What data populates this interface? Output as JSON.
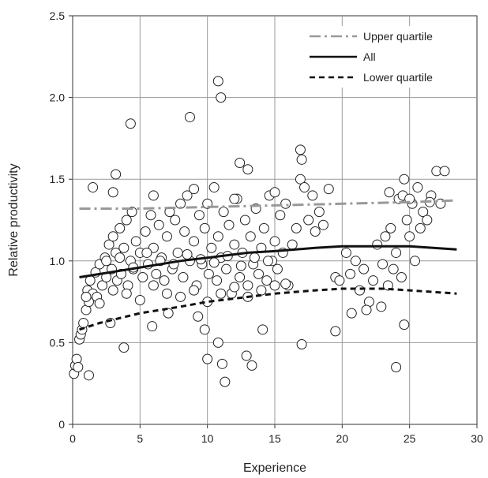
{
  "chart_data": {
    "type": "scatter",
    "xlabel": "Experience",
    "ylabel": "Relative productivity",
    "xlim": [
      0,
      30
    ],
    "ylim": [
      0,
      2.5
    ],
    "xticks": [
      0,
      5,
      10,
      15,
      20,
      25,
      30
    ],
    "yticks": [
      0,
      0.5,
      1.0,
      1.5,
      2.0,
      2.5
    ],
    "ytick_labels": [
      "0",
      "0.5",
      "1.0",
      "1.5",
      "2.0",
      "2.5"
    ],
    "xtick_labels": [
      "0",
      "5",
      "10",
      "15",
      "20",
      "25",
      "30"
    ],
    "grid": true,
    "legend_position": "top-right",
    "series": [
      {
        "name": "Upper quartile",
        "kind": "line",
        "style": "dash-dot",
        "color": "#999999",
        "x": [
          0.5,
          5,
          10,
          15,
          20,
          25,
          28.5
        ],
        "y": [
          1.32,
          1.32,
          1.33,
          1.34,
          1.35,
          1.36,
          1.37
        ]
      },
      {
        "name": "All",
        "kind": "line",
        "style": "solid",
        "color": "#111111",
        "x": [
          0.5,
          2,
          5,
          8,
          10,
          13,
          15,
          18,
          20,
          23,
          25,
          28.5
        ],
        "y": [
          0.9,
          0.92,
          0.96,
          1.0,
          1.02,
          1.05,
          1.06,
          1.08,
          1.09,
          1.09,
          1.09,
          1.07
        ]
      },
      {
        "name": "Lower quartile",
        "kind": "line",
        "style": "dashed",
        "color": "#111111",
        "x": [
          0.5,
          2,
          5,
          8,
          10,
          13,
          15,
          18,
          20,
          23,
          25,
          28.5
        ],
        "y": [
          0.58,
          0.62,
          0.68,
          0.72,
          0.75,
          0.78,
          0.8,
          0.82,
          0.83,
          0.83,
          0.82,
          0.8
        ]
      },
      {
        "name": "",
        "kind": "scatter",
        "marker": "open-circle",
        "x": [
          0.1,
          0.2,
          0.3,
          0.4,
          0.5,
          0.6,
          0.7,
          0.8,
          1.0,
          1.1,
          1.2,
          1.3,
          1.5,
          1.7,
          1.8,
          2.0,
          2.2,
          2.4,
          2.5,
          2.7,
          2.9,
          3.0,
          3.2,
          3.3,
          3.5,
          3.6,
          3.8,
          4.0,
          4.1,
          4.3,
          4.4,
          4.5,
          4.7,
          5.0,
          5.2,
          5.4,
          5.6,
          5.8,
          6.0,
          6.2,
          6.4,
          6.6,
          6.8,
          7.0,
          7.2,
          7.4,
          7.6,
          7.8,
          8.0,
          8.2,
          8.3,
          8.5,
          8.7,
          9.0,
          9.2,
          9.4,
          9.6,
          9.8,
          10.0,
          10.1,
          10.3,
          10.5,
          10.7,
          10.8,
          11.0,
          11.2,
          11.4,
          11.6,
          11.8,
          12.0,
          12.2,
          12.4,
          12.6,
          12.8,
          13.0,
          13.2,
          13.4,
          13.6,
          13.8,
          14.0,
          14.2,
          14.4,
          14.6,
          14.8,
          15.0,
          15.2,
          15.4,
          15.6,
          15.8,
          16.0,
          16.3,
          16.6,
          16.9,
          17.0,
          17.2,
          17.5,
          17.8,
          18.0,
          18.3,
          18.6,
          19.0,
          19.5,
          19.8,
          20.3,
          20.6,
          21.0,
          21.3,
          21.6,
          22.0,
          22.3,
          22.6,
          23.0,
          23.2,
          23.4,
          23.6,
          23.8,
          24.0,
          24.2,
          24.4,
          24.6,
          24.8,
          25.0,
          25.2,
          25.4,
          25.6,
          25.8,
          26.0,
          26.3,
          26.6,
          27.0,
          27.3,
          27.6,
          1.0,
          2.0,
          3.0,
          4.0,
          5.0,
          6.0,
          7.0,
          8.0,
          9.0,
          10.0,
          11.0,
          12.0,
          13.0,
          14.0,
          15.0,
          2.5,
          3.5,
          4.5,
          5.5,
          6.5,
          7.5,
          8.5,
          9.5,
          10.5,
          11.5,
          12.5,
          13.5,
          14.5,
          1.5,
          3.0,
          6.0,
          9.0,
          12.0,
          15.0,
          24.5,
          25.0,
          23.5,
          26.5,
          4.3,
          8.7,
          10.8,
          11.0,
          11.1,
          12.4,
          13.0,
          3.2,
          3.8,
          9.8,
          10.0,
          10.8,
          11.3,
          12.9,
          13.3,
          16.9,
          17.0,
          19.5,
          24.0,
          24.6,
          1.2,
          2.8,
          5.9,
          7.1,
          9.3,
          14.1,
          15.8,
          20.7,
          21.8,
          22.9
        ],
        "y": [
          0.31,
          0.36,
          0.4,
          0.35,
          0.52,
          0.55,
          0.58,
          0.62,
          0.7,
          0.82,
          0.75,
          0.88,
          0.8,
          0.93,
          0.78,
          0.98,
          0.85,
          1.02,
          0.9,
          1.1,
          0.95,
          1.15,
          1.05,
          0.88,
          1.2,
          0.92,
          1.08,
          1.25,
          0.85,
          1.0,
          1.3,
          0.95,
          1.12,
          1.05,
          0.9,
          1.18,
          0.98,
          1.28,
          1.08,
          0.92,
          1.22,
          1.02,
          0.88,
          1.15,
          1.3,
          0.95,
          1.25,
          1.05,
          1.35,
          0.9,
          1.18,
          1.4,
          1.0,
          1.12,
          0.85,
          1.28,
          0.98,
          1.2,
          1.35,
          0.92,
          1.08,
          1.45,
          0.88,
          1.15,
          1.02,
          1.3,
          0.95,
          1.22,
          0.8,
          1.1,
          1.38,
          0.9,
          1.05,
          1.25,
          0.85,
          1.15,
          0.98,
          1.32,
          0.92,
          1.08,
          1.2,
          0.88,
          1.4,
          1.0,
          1.12,
          0.95,
          1.28,
          1.05,
          1.35,
          0.85,
          1.1,
          1.2,
          1.5,
          1.62,
          1.45,
          1.25,
          1.4,
          1.18,
          1.3,
          1.22,
          1.44,
          0.9,
          0.88,
          1.05,
          0.92,
          1.0,
          0.82,
          0.95,
          0.75,
          0.88,
          1.1,
          0.98,
          1.15,
          0.85,
          1.2,
          0.95,
          1.05,
          1.38,
          0.9,
          1.5,
          1.25,
          1.15,
          1.35,
          1.0,
          1.45,
          1.2,
          1.3,
          1.25,
          1.4,
          1.55,
          1.35,
          1.55,
          0.78,
          0.74,
          0.82,
          0.8,
          0.76,
          0.85,
          0.8,
          0.78,
          0.82,
          0.75,
          0.8,
          0.84,
          0.78,
          0.82,
          0.85,
          1.0,
          1.02,
          0.96,
          1.05,
          1.0,
          0.98,
          1.04,
          1.01,
          0.99,
          1.03,
          0.97,
          1.02,
          1.0,
          1.45,
          1.42,
          1.4,
          1.44,
          1.38,
          1.42,
          1.4,
          1.38,
          1.42,
          1.36,
          1.84,
          1.88,
          2.1,
          2.0,
          0.37,
          1.6,
          1.56,
          1.53,
          0.47,
          0.58,
          0.4,
          0.5,
          0.26,
          0.42,
          0.36,
          1.68,
          0.49,
          0.57,
          0.35,
          0.61,
          0.3,
          0.62,
          0.6,
          0.68,
          0.66,
          0.58,
          0.86,
          0.68,
          0.7,
          0.72
        ]
      }
    ]
  }
}
